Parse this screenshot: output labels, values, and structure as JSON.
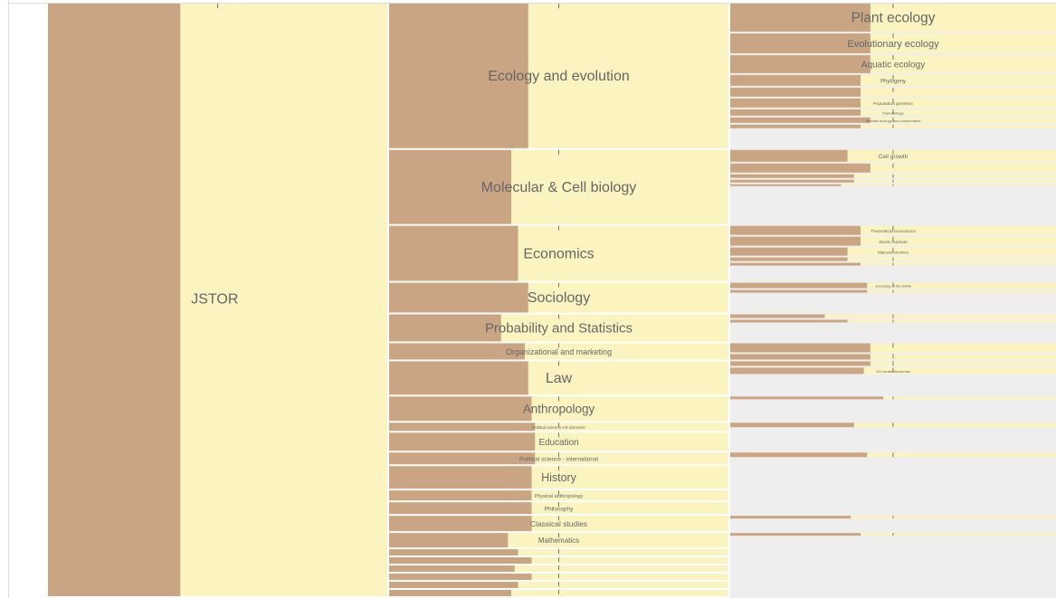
{
  "root": {
    "label": "JSTOR",
    "size": 658,
    "share": 0.39,
    "children": [
      {
        "label": "Ecology and evolution",
        "size": 162,
        "share": 0.41,
        "children": [
          {
            "label": "Plant ecology",
            "size": 33,
            "share": 0.43
          },
          {
            "label": "Evolutionary ecology",
            "size": 24,
            "share": 0.43
          },
          {
            "label": "Aquatic ecology",
            "size": 22,
            "share": 0.43
          },
          {
            "label": "Phylogeny",
            "size": 14,
            "share": 0.4
          },
          {
            "label": null,
            "size": 12,
            "share": 0.4
          },
          {
            "label": "Population genetics",
            "size": 12,
            "share": 0.4
          },
          {
            "label": "Paleobiology",
            "size": 9,
            "share": 0.4
          },
          {
            "label": "Species ecology and conservation",
            "size": 8,
            "share": 0.43
          },
          {
            "label": null,
            "size": 6,
            "share": 0.4
          }
        ]
      },
      {
        "label": "Molecular & Cell biology",
        "size": 84,
        "share": 0.36,
        "children": [
          {
            "label": "Cell growth",
            "size": 15,
            "share": 0.36
          },
          {
            "label": null,
            "size": 12,
            "share": 0.43
          },
          {
            "label": null,
            "size": 6,
            "share": 0.38
          },
          {
            "label": null,
            "size": 5,
            "share": 0.38
          },
          {
            "label": null,
            "size": 4,
            "share": 0.34
          }
        ]
      },
      {
        "label": "Economics",
        "size": 63,
        "share": 0.38,
        "children": [
          {
            "label": "Theoretical economics",
            "size": 12,
            "share": 0.4
          },
          {
            "label": "Stock markets",
            "size": 12,
            "share": 0.4
          },
          {
            "label": "Macroeconomics",
            "size": 11,
            "share": 0.36
          },
          {
            "label": null,
            "size": 6,
            "share": 0.36
          },
          {
            "label": null,
            "size": 5,
            "share": 0.4
          }
        ]
      },
      {
        "label": "Sociology",
        "size": 35,
        "share": 0.41,
        "children": [
          {
            "label": "Sociology of the family",
            "size": 8,
            "share": 0.42
          },
          {
            "label": null,
            "size": 5,
            "share": 0.42
          }
        ]
      },
      {
        "label": "Probability and Statistics",
        "size": 32,
        "share": 0.33,
        "children": [
          {
            "label": null,
            "size": 6,
            "share": 0.29
          },
          {
            "label": null,
            "size": 5,
            "share": 0.36
          }
        ]
      },
      {
        "label": "Organizational and marketing",
        "size": 20,
        "share": 0.4,
        "children": [
          {
            "label": null,
            "size": 12,
            "share": 0.43
          },
          {
            "label": null,
            "size": 8,
            "share": 0.43
          }
        ]
      },
      {
        "label": "Law",
        "size": 39,
        "share": 0.41,
        "children": [
          {
            "label": null,
            "size": 7,
            "share": 0.43
          },
          {
            "label": "US constitutional law",
            "size": 9,
            "share": 0.41
          }
        ]
      },
      {
        "label": "Anthropology",
        "size": 29,
        "share": 0.42,
        "children": [
          {
            "label": null,
            "size": 5,
            "share": 0.47
          }
        ]
      },
      {
        "label": "Political science-US domestic",
        "size": 11,
        "share": 0.43,
        "children": [
          {
            "label": null,
            "size": 7,
            "share": 0.38
          }
        ]
      },
      {
        "label": "Education",
        "size": 22,
        "share": 0.43,
        "children": []
      },
      {
        "label": "Political science - international",
        "size": 15,
        "share": 0.43,
        "children": [
          {
            "label": null,
            "size": 7,
            "share": 0.42
          }
        ]
      },
      {
        "label": "History",
        "size": 27,
        "share": 0.42,
        "children": []
      },
      {
        "label": "Physical anthropology",
        "size": 13,
        "share": 0.42,
        "children": []
      },
      {
        "label": "Philosophy",
        "size": 15,
        "share": 0.42,
        "children": []
      },
      {
        "label": "Classical studies",
        "size": 19,
        "share": 0.42,
        "children": [
          {
            "label": null,
            "size": 5,
            "share": 0.37
          }
        ]
      },
      {
        "label": "Mathematics",
        "size": 18,
        "share": 0.35,
        "children": [
          {
            "label": null,
            "size": 5,
            "share": 0.4
          }
        ]
      },
      {
        "label": null,
        "size": 9,
        "share": 0.38,
        "children": []
      },
      {
        "label": null,
        "size": 9,
        "share": 0.42,
        "children": []
      },
      {
        "label": null,
        "size": 9,
        "share": 0.37,
        "children": []
      },
      {
        "label": null,
        "size": 9,
        "share": 0.42,
        "children": []
      },
      {
        "label": null,
        "size": 9,
        "share": 0.38,
        "children": []
      },
      {
        "label": null,
        "size": 9,
        "share": 0.36,
        "children": []
      }
    ]
  }
}
